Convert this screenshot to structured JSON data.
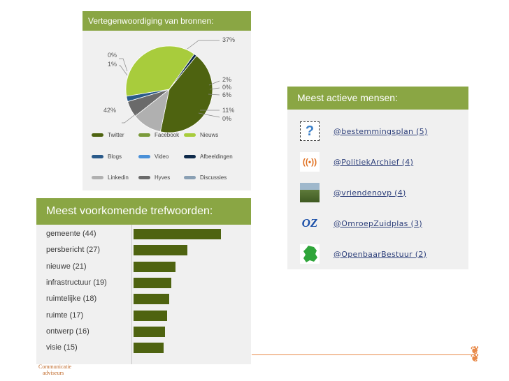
{
  "sources_panel": {
    "title": "Vertegenwoordiging van bronnen:",
    "slice_labels": {
      "nieuws": "37%",
      "blogs_a": "2%",
      "blogs_b": "0%",
      "hyves": "6%",
      "linkedin": "11%",
      "discussies": "0%",
      "twitter": "42%",
      "video": "0%",
      "afbeeldingen": "1%"
    },
    "legend": [
      {
        "label": "Twitter",
        "color": "#4e6310"
      },
      {
        "label": "Facebook",
        "color": "#7a9a3a"
      },
      {
        "label": "Nieuws",
        "color": "#a8cc3c"
      },
      {
        "label": "Blogs",
        "color": "#2a5a8a"
      },
      {
        "label": "Video",
        "color": "#4a90d8"
      },
      {
        "label": "Afbeeldingen",
        "color": "#0e2a4a"
      },
      {
        "label": "Linkedin",
        "color": "#b0b0b0"
      },
      {
        "label": "Hyves",
        "color": "#6a6a6a"
      },
      {
        "label": "Discussies",
        "color": "#8aa0b4"
      }
    ]
  },
  "chart_data": {
    "type": "pie",
    "slices": [
      {
        "name": "Twitter",
        "value": 42,
        "color": "#4e6310"
      },
      {
        "name": "Linkedin",
        "value": 11,
        "color": "#b0b0b0"
      },
      {
        "name": "Discussies",
        "value": 0,
        "color": "#8aa0b4"
      },
      {
        "name": "Hyves",
        "value": 6,
        "color": "#6a6a6a"
      },
      {
        "name": "Blogs",
        "value": 2,
        "color": "#2a5a8a"
      },
      {
        "name": "Nieuws",
        "value": 37,
        "color": "#a8cc3c"
      },
      {
        "name": "Video",
        "value": 0,
        "color": "#4a90d8"
      },
      {
        "name": "Afbeeldingen",
        "value": 1,
        "color": "#0e2a4a"
      }
    ]
  },
  "keywords_panel": {
    "title": "Meest voorkomende trefwoorden:",
    "items": [
      {
        "label": "gemeente (44)",
        "value": 44
      },
      {
        "label": "persbericht (27)",
        "value": 27
      },
      {
        "label": "nieuwe (21)",
        "value": 21
      },
      {
        "label": "infrastructuur (19)",
        "value": 19
      },
      {
        "label": "ruimtelijke (18)",
        "value": 18
      },
      {
        "label": "ruimte (17)",
        "value": 17
      },
      {
        "label": "ontwerp (16)",
        "value": 16
      },
      {
        "label": "visie (15)",
        "value": 15
      }
    ]
  },
  "people_panel": {
    "title": "Meest actieve mensen:",
    "people": [
      {
        "handle": "@bestemmingsplan (5)",
        "icon": "question-mark-icon"
      },
      {
        "handle": "@PolitiekArchief (4)",
        "icon": "broadcast-icon"
      },
      {
        "handle": "@vriendenovp (4)",
        "icon": "landscape-photo-icon"
      },
      {
        "handle": "@OmroepZuidplas (3)",
        "icon": "oz-logo-icon"
      },
      {
        "handle": "@OpenbaarBestuur (2)",
        "icon": "map-netherlands-icon"
      }
    ]
  },
  "footer": {
    "logo_line1": "Communicatie",
    "logo_line2": "adviseurs",
    "accent_color": "#e88a4a"
  }
}
